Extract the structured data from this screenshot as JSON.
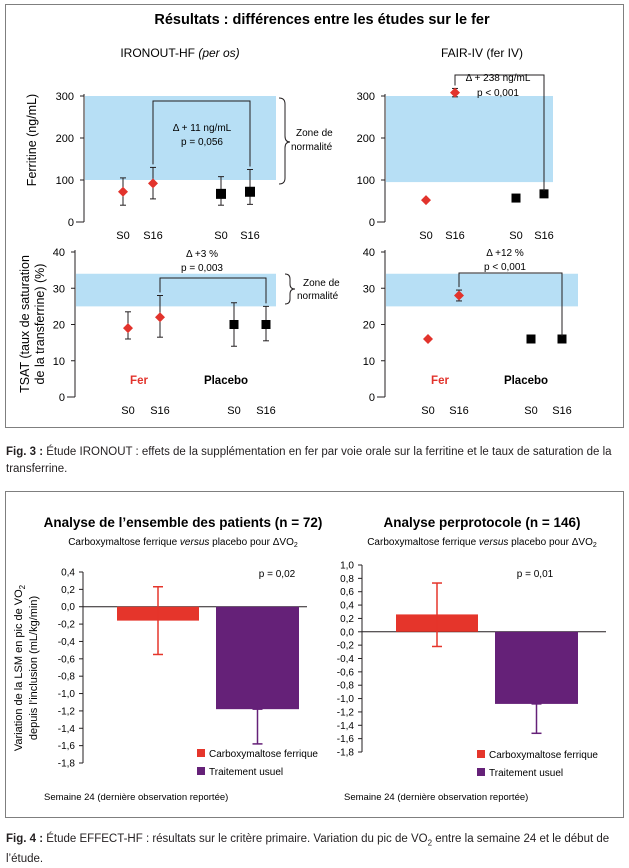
{
  "fig3": {
    "title": "Résultats : différences entre les études sur le fer",
    "left_title_main": "IRONOUT-HF ",
    "left_title_italic": "(per os)",
    "right_title": "FAIR-IV (fer IV)",
    "ylabel_top": "Ferritine (ng/mL)",
    "ylabel_bottom_1": "TSAT (taux de saturation",
    "ylabel_bottom_2": "de la transferrine) (%)",
    "zone_label_1": "Zone de",
    "zone_label_2": "normalité",
    "fer_label": "Fer",
    "placebo_label": "Placebo",
    "caption_bold": "Fig. 3 :",
    "caption_text": " Étude IRONOUT : effets de la supplémentation en fer par voie orale sur la ferritine et le taux de saturation de la transferrine.",
    "colors": {
      "band": "#b7dff5",
      "iron": "#e2332c",
      "placebo": "#000000"
    }
  },
  "fig4": {
    "left_title": "Analyse de l’ensemble des patients (n = 72)",
    "right_title": "Analyse perprotocole (n = 146)",
    "subtitle_pre": "Carboxymaltose ferrique ",
    "subtitle_italic": "versus",
    "subtitle_post": " placebo pour ΔVO",
    "subtitle_sub": "2",
    "ylabel_1": "Variation de la LSM en pic de VO",
    "ylabel_1_sub": "2",
    "ylabel_2": "depuis l’inclusion (mL/kg/min)",
    "footnote": "Semaine 24 (dernière observation reportée)",
    "caption_bold": "Fig. 4 :",
    "caption_pre": " Étude EFFECT-HF : résultats sur le critère primaire. Variation du pic de VO",
    "caption_sub": "2",
    "caption_post": " entre la semaine 24 et le début de l’étude.",
    "colors": {
      "carboxy": "#e5352b",
      "usual": "#652178"
    }
  },
  "chart_data": [
    {
      "type": "scatter",
      "title": "IRONOUT-HF (per os)",
      "ylabel": "Ferritine (ng/mL)",
      "ylim": [
        0,
        300
      ],
      "yticks": [
        0,
        100,
        200,
        300
      ],
      "band": [
        100,
        300
      ],
      "x_labels": [
        "S0",
        "S16",
        "S0",
        "S16"
      ],
      "series": [
        {
          "name": "Fer",
          "points": [
            {
              "x": "S0",
              "y": 72,
              "lo": 40,
              "hi": 105
            },
            {
              "x": "S16",
              "y": 92,
              "lo": 55,
              "hi": 130
            }
          ]
        },
        {
          "name": "Placebo",
          "points": [
            {
              "x": "S0",
              "y": 67,
              "lo": 40,
              "hi": 108
            },
            {
              "x": "S16",
              "y": 72,
              "lo": 42,
              "hi": 125
            }
          ]
        }
      ],
      "annotation": [
        "Δ + 11 ng/mL",
        "p = 0,056"
      ]
    },
    {
      "type": "scatter",
      "title": "FAIR-IV (fer IV)",
      "ylim": [
        0,
        300
      ],
      "yticks": [
        0,
        100,
        200,
        300
      ],
      "band": [
        95,
        300
      ],
      "x_labels": [
        "S0",
        "S16",
        "S0",
        "S16"
      ],
      "series": [
        {
          "name": "Fer",
          "points": [
            {
              "x": "S0",
              "y": 52
            },
            {
              "x": "S16",
              "y": 308,
              "lo": 298,
              "hi": 318
            }
          ]
        },
        {
          "name": "Placebo",
          "points": [
            {
              "x": "S0",
              "y": 57
            },
            {
              "x": "S16",
              "y": 67
            }
          ]
        }
      ],
      "annotation": [
        "Δ + 238 ng/mL",
        "p < 0,001"
      ]
    },
    {
      "type": "scatter",
      "ylabel": "TSAT (taux de saturation de la transferrine) (%)",
      "ylim": [
        0,
        40
      ],
      "yticks": [
        0,
        10,
        20,
        30,
        40
      ],
      "band": [
        25,
        34
      ],
      "x_labels": [
        "S0",
        "S16",
        "S0",
        "S16"
      ],
      "series": [
        {
          "name": "Fer",
          "points": [
            {
              "x": "S0",
              "y": 19,
              "lo": 16,
              "hi": 23.5
            },
            {
              "x": "S16",
              "y": 22,
              "lo": 16.5,
              "hi": 28
            }
          ]
        },
        {
          "name": "Placebo",
          "points": [
            {
              "x": "S0",
              "y": 20,
              "lo": 14,
              "hi": 26
            },
            {
              "x": "S16",
              "y": 20,
              "lo": 15.5,
              "hi": 25
            }
          ]
        }
      ],
      "annotation": [
        "Δ +3 %",
        "p = 0,003"
      ]
    },
    {
      "type": "scatter",
      "ylim": [
        0,
        40
      ],
      "yticks": [
        0,
        10,
        20,
        30,
        40
      ],
      "band": [
        25,
        34
      ],
      "x_labels": [
        "S0",
        "S16",
        "S0",
        "S16"
      ],
      "series": [
        {
          "name": "Fer",
          "points": [
            {
              "x": "S0",
              "y": 16
            },
            {
              "x": "S16",
              "y": 28,
              "lo": 26.5,
              "hi": 29.5
            }
          ]
        },
        {
          "name": "Placebo",
          "points": [
            {
              "x": "S0",
              "y": 16
            },
            {
              "x": "S16",
              "y": 16
            }
          ]
        }
      ],
      "annotation": [
        "Δ +12 %",
        "p < 0,001"
      ]
    },
    {
      "type": "bar",
      "title": "Analyse de l’ensemble des patients (n = 72)",
      "ylabel": "Variation de la LSM en pic de VO2 depuis l’inclusion (mL/kg/min)",
      "ylim": [
        -1.8,
        0.4
      ],
      "yticks": [
        "0,4",
        "0,2",
        "0,0",
        "-0,2",
        "-0,4",
        "-0,6",
        "-0,8",
        "-1,0",
        "-1,2",
        "-1,4",
        "-1,6",
        "-1,8"
      ],
      "categories": [
        "Carboxymaltose ferrique",
        "Traitement usuel"
      ],
      "values": [
        -0.16,
        -1.18
      ],
      "errors": [
        [
          -0.55,
          0.23
        ],
        [
          -1.58,
          -1.18
        ]
      ],
      "annotation": "p = 0,02"
    },
    {
      "type": "bar",
      "title": "Analyse perprotocole (n = 146)",
      "ylim": [
        -1.8,
        1.0
      ],
      "yticks": [
        "1,0",
        "0,8",
        "0,6",
        "0,4",
        "0,2",
        "0,0",
        "-0,2",
        "-0,4",
        "-0,6",
        "-0,8",
        "-1,0",
        "-1,2",
        "-1,4",
        "-1,6",
        "-1,8"
      ],
      "categories": [
        "Carboxymaltose ferrique",
        "Traitement usuel"
      ],
      "values": [
        0.26,
        -1.08
      ],
      "errors": [
        [
          -0.22,
          0.73
        ],
        [
          -1.52,
          -1.08
        ]
      ],
      "annotation": "p = 0,01"
    }
  ]
}
